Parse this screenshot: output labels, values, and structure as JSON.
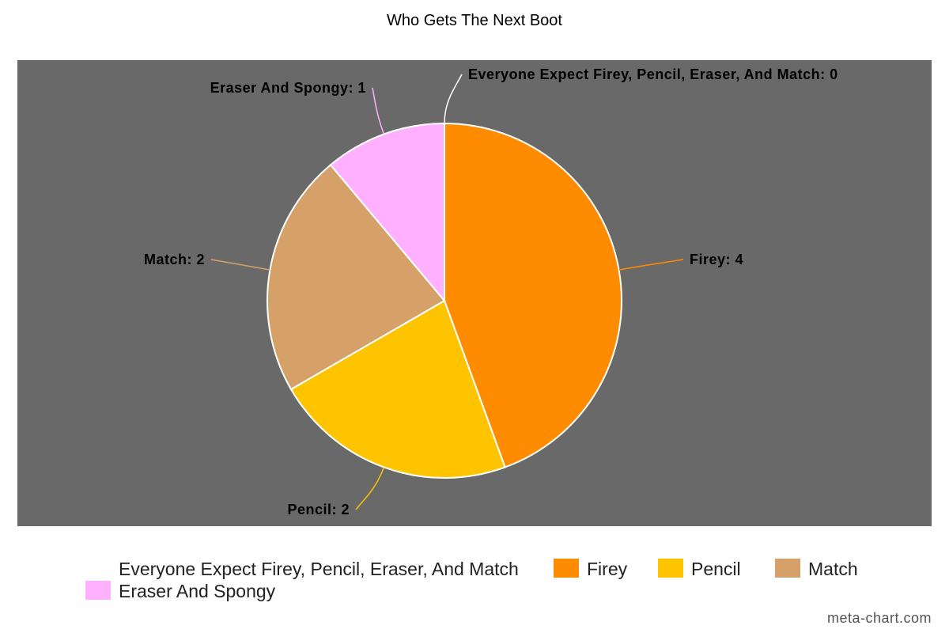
{
  "chart_data": {
    "type": "pie",
    "title": "Who Gets The Next Boot",
    "plot_background": "#696969",
    "slice_border": "#ffffff",
    "slices": [
      {
        "name": "Everyone Expect Firey, Pencil, Eraser, And Match",
        "value": 0,
        "color": "#ffffff",
        "label": "Everyone Expect Firey, Pencil, Eraser, And Match: 0",
        "legend": "Everyone Expect Firey, Pencil, Eraser, And Match"
      },
      {
        "name": "Firey",
        "value": 4,
        "color": "#ff8c00",
        "label": "Firey: 4",
        "legend": "Firey"
      },
      {
        "name": "Pencil",
        "value": 2,
        "color": "#ffc400",
        "label": "Pencil: 2",
        "legend": "Pencil"
      },
      {
        "name": "Match",
        "value": 2,
        "color": "#d6a168",
        "label": "Match: 2",
        "legend": "Match"
      },
      {
        "name": "Eraser And Spongy",
        "value": 1,
        "color": "#ffb0ff",
        "label": "Eraser And Spongy: 1",
        "legend": "Eraser And Spongy"
      }
    ]
  },
  "watermark": "meta-chart.com"
}
